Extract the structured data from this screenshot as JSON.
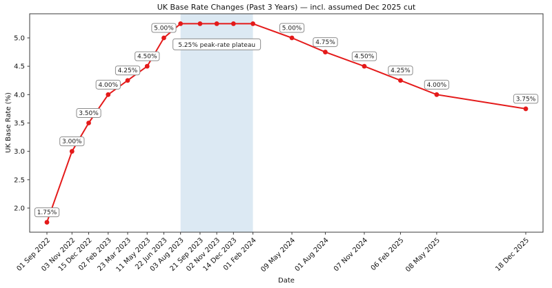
{
  "figure": {
    "background": "#ffffff"
  },
  "chart_data": {
    "type": "line",
    "title": "UK Base Rate Changes (Past 3 Years) — incl. assumed Dec 2025 cut",
    "xlabel": "Date",
    "ylabel": "UK Base Rate (%)",
    "grid": false,
    "legend": "none",
    "line_color": "#e41a1a",
    "marker": "circle",
    "spine_color": "#3a3a3a",
    "label_box": {
      "fill": "#ffffff",
      "border": "#8c8c8c",
      "text_color": "#1a1a1a"
    },
    "ylim": [
      1.575,
      5.425
    ],
    "yticks": [
      2.0,
      2.5,
      3.0,
      3.5,
      4.0,
      4.5,
      5.0
    ],
    "ytick_labels": [
      "2.0",
      "2.5",
      "3.0",
      "3.5",
      "4.0",
      "4.5",
      "5.0"
    ],
    "points": [
      {
        "date": "01 Sep 2022",
        "value": 1.75,
        "label": "1.75%"
      },
      {
        "date": "03 Nov 2022",
        "value": 3.0,
        "label": "3.00%"
      },
      {
        "date": "15 Dec 2022",
        "value": 3.5,
        "label": "3.50%"
      },
      {
        "date": "02 Feb 2023",
        "value": 4.0,
        "label": "4.00%"
      },
      {
        "date": "23 Mar 2023",
        "value": 4.25,
        "label": "4.25%"
      },
      {
        "date": "11 May 2023",
        "value": 4.5,
        "label": "4.50%"
      },
      {
        "date": "22 Jun 2023",
        "value": 5.0,
        "label": "5.00%"
      },
      {
        "date": "03 Aug 2023",
        "value": 5.25,
        "label": null
      },
      {
        "date": "21 Sep 2023",
        "value": 5.25,
        "label": null
      },
      {
        "date": "02 Nov 2023",
        "value": 5.25,
        "label": null
      },
      {
        "date": "14 Dec 2023",
        "value": 5.25,
        "label": null
      },
      {
        "date": "01 Feb 2024",
        "value": 5.25,
        "label": null
      },
      {
        "date": "09 May 2024",
        "value": 5.0,
        "label": "5.00%"
      },
      {
        "date": "01 Aug 2024",
        "value": 4.75,
        "label": "4.75%"
      },
      {
        "date": "07 Nov 2024",
        "value": 4.5,
        "label": "4.50%"
      },
      {
        "date": "06 Feb 2025",
        "value": 4.25,
        "label": "4.25%"
      },
      {
        "date": "08 May 2025",
        "value": 4.0,
        "label": "4.00%"
      },
      {
        "date": "18 Dec 2025",
        "value": 3.75,
        "label": "3.75%"
      }
    ],
    "annotation": {
      "text": "5.25% peak-rate plateau",
      "span_start": "03 Aug 2023",
      "span_end": "01 Feb 2024",
      "span_color": "#dce9f3",
      "plateau_value": 5.25
    }
  }
}
